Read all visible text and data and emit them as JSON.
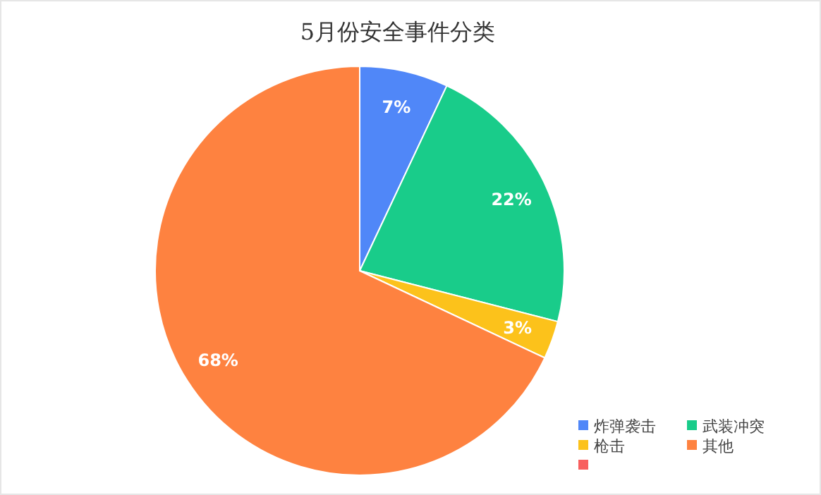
{
  "chart_data": {
    "type": "pie",
    "title": "5月份安全事件分类",
    "categories": [
      "炸弹袭击",
      "武装冲突",
      "枪击",
      "其他",
      null
    ],
    "values": [
      7,
      22,
      3,
      68,
      0
    ],
    "colors": [
      "#5087f8",
      "#19cc8a",
      "#fcc21b",
      "#fe8240",
      "#f85f5e"
    ],
    "value_labels": [
      "7%",
      "22%",
      "3%",
      "68%",
      null
    ],
    "legend": "bottom right"
  }
}
